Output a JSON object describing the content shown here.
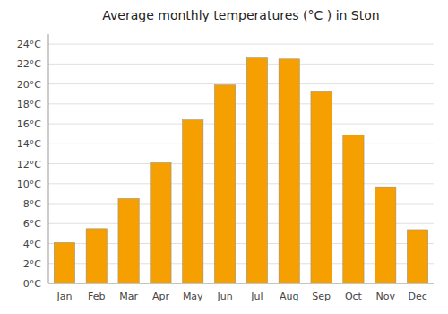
{
  "chart_data": {
    "type": "bar",
    "title": "Average monthly temperatures (°C ) in Ston",
    "categories": [
      "Jan",
      "Feb",
      "Mar",
      "Apr",
      "May",
      "Jun",
      "Jul",
      "Aug",
      "Sep",
      "Oct",
      "Nov",
      "Dec"
    ],
    "values": [
      4.1,
      5.5,
      8.5,
      12.1,
      16.4,
      19.9,
      22.6,
      22.5,
      19.3,
      14.9,
      9.7,
      5.4
    ],
    "color": "#F5A000",
    "ylim": [
      0,
      25
    ],
    "yticks": [
      {
        "value": 0,
        "label": "0°C"
      },
      {
        "value": 2,
        "label": "2°C"
      },
      {
        "value": 4,
        "label": "4°C"
      },
      {
        "value": 6,
        "label": "6°C"
      },
      {
        "value": 8,
        "label": "8°C"
      },
      {
        "value": 10,
        "label": "10°C"
      },
      {
        "value": 12,
        "label": "12°C"
      },
      {
        "value": 14,
        "label": "14°C"
      },
      {
        "value": 16,
        "label": "16°C"
      },
      {
        "value": 18,
        "label": "18°C"
      },
      {
        "value": 20,
        "label": "20°C"
      },
      {
        "value": 22,
        "label": "22°C"
      },
      {
        "value": 24,
        "label": "24°C"
      }
    ],
    "grid": true
  }
}
